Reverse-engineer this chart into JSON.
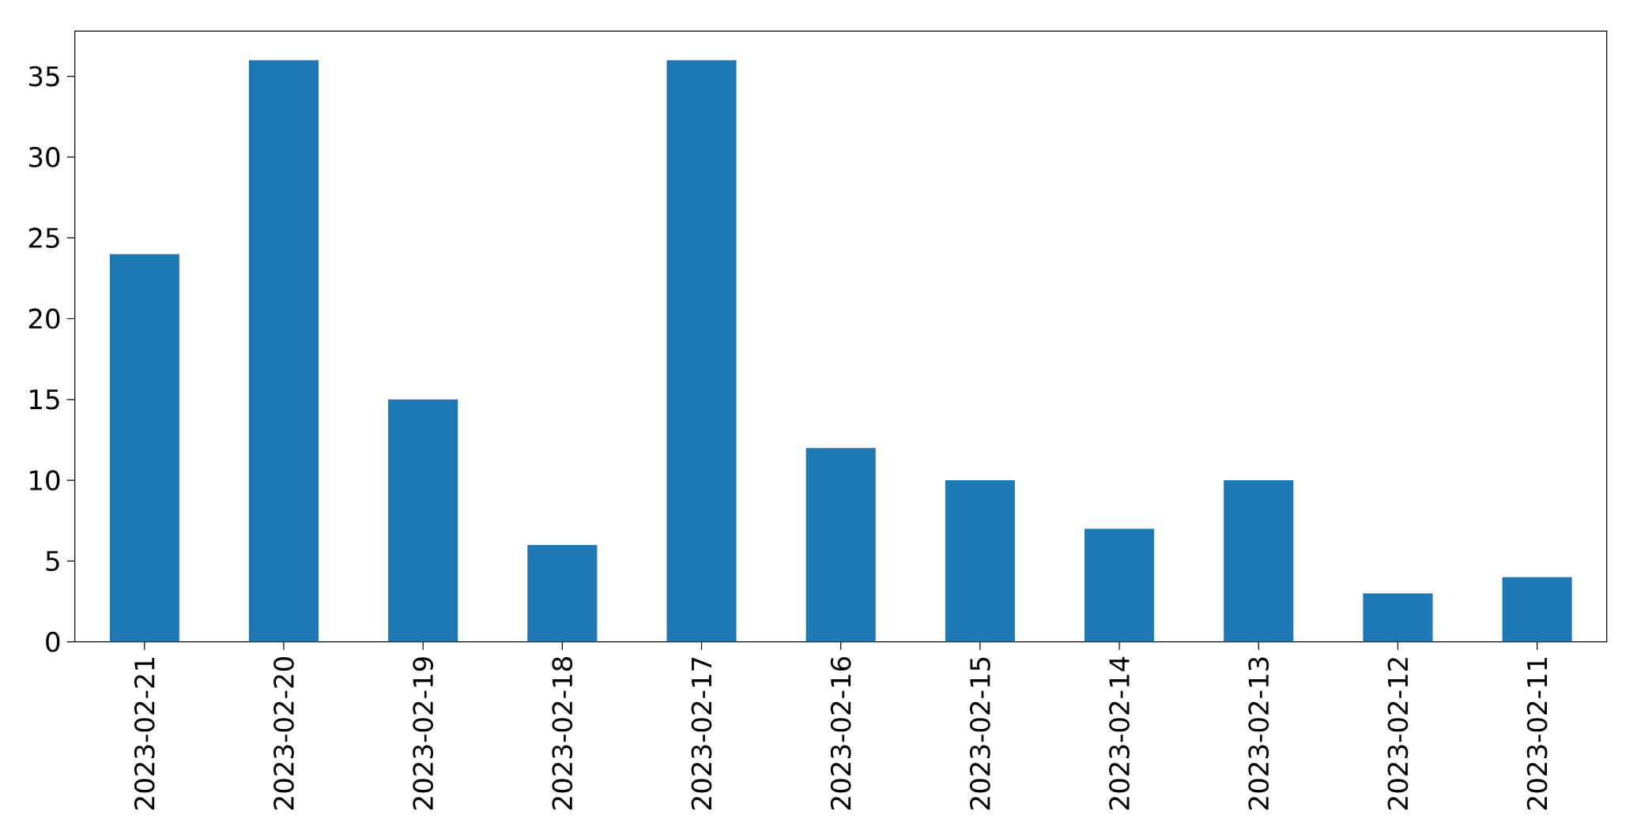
{
  "chart_data": {
    "type": "bar",
    "categories": [
      "2023-02-21",
      "2023-02-20",
      "2023-02-19",
      "2023-02-18",
      "2023-02-17",
      "2023-02-16",
      "2023-02-15",
      "2023-02-14",
      "2023-02-13",
      "2023-02-12",
      "2023-02-11"
    ],
    "values": [
      24,
      36,
      15,
      6,
      36,
      12,
      10,
      7,
      10,
      3,
      4
    ],
    "color": "#1f77b4",
    "ylim": [
      0,
      37.8
    ],
    "yticks": [
      0,
      5,
      10,
      15,
      20,
      25,
      30,
      35
    ],
    "grid": false
  }
}
